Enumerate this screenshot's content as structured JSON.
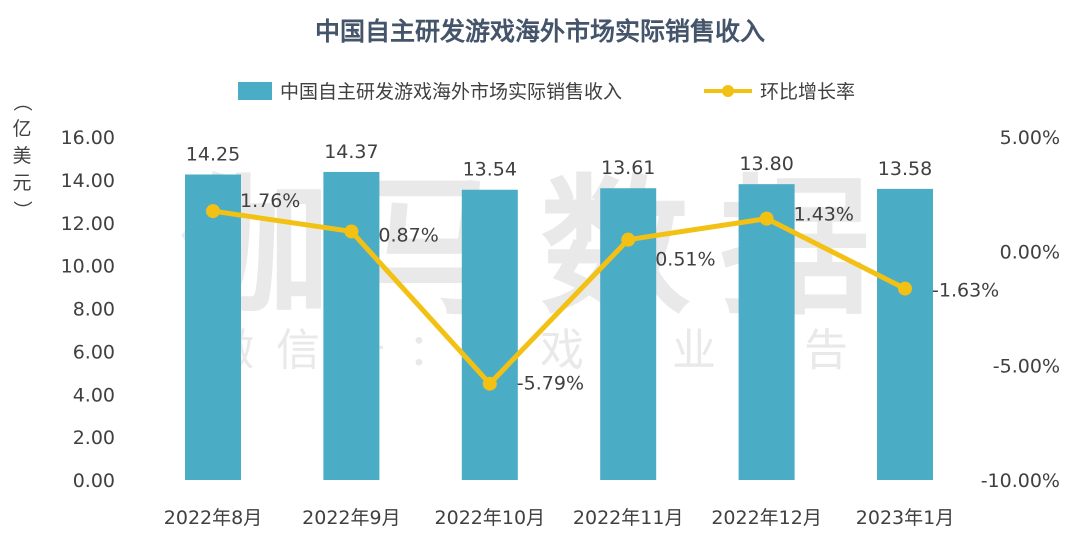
{
  "chart_data": {
    "type": "bar",
    "title": "中国自主研发游戏海外市场实际销售收入",
    "categories": [
      "2022年8月",
      "2022年9月",
      "2022年10月",
      "2022年11月",
      "2022年12月",
      "2023年1月"
    ],
    "series": [
      {
        "name": "中国自主研发游戏海外市场实际销售收入",
        "type": "bar",
        "axis": "left",
        "color": "#4bacc6",
        "values": [
          14.25,
          14.37,
          13.54,
          13.61,
          13.8,
          13.58
        ],
        "labels": [
          "14.25",
          "14.37",
          "13.54",
          "13.61",
          "13.80",
          "13.58"
        ]
      },
      {
        "name": "环比增长率",
        "type": "line",
        "axis": "right",
        "color": "#f2c114",
        "values": [
          1.76,
          0.87,
          -5.79,
          0.51,
          1.43,
          -1.63
        ],
        "labels": [
          "1.76%",
          "0.87%",
          "-5.79%",
          "0.51%",
          "1.43%",
          "-1.63%"
        ]
      }
    ],
    "y_left": {
      "label": "（亿美元）",
      "min": 0,
      "max": 16,
      "ticks": [
        "0.00",
        "2.00",
        "4.00",
        "6.00",
        "8.00",
        "10.00",
        "12.00",
        "14.00",
        "16.00"
      ]
    },
    "y_right": {
      "min": -10,
      "max": 5,
      "ticks": [
        "-10.00%",
        "-5.00%",
        "0.00%",
        "5.00%"
      ]
    },
    "grid": false,
    "legend": "top"
  },
  "watermark": {
    "main": "伽马数据",
    "sub": "微信号：游戏产业报告"
  }
}
